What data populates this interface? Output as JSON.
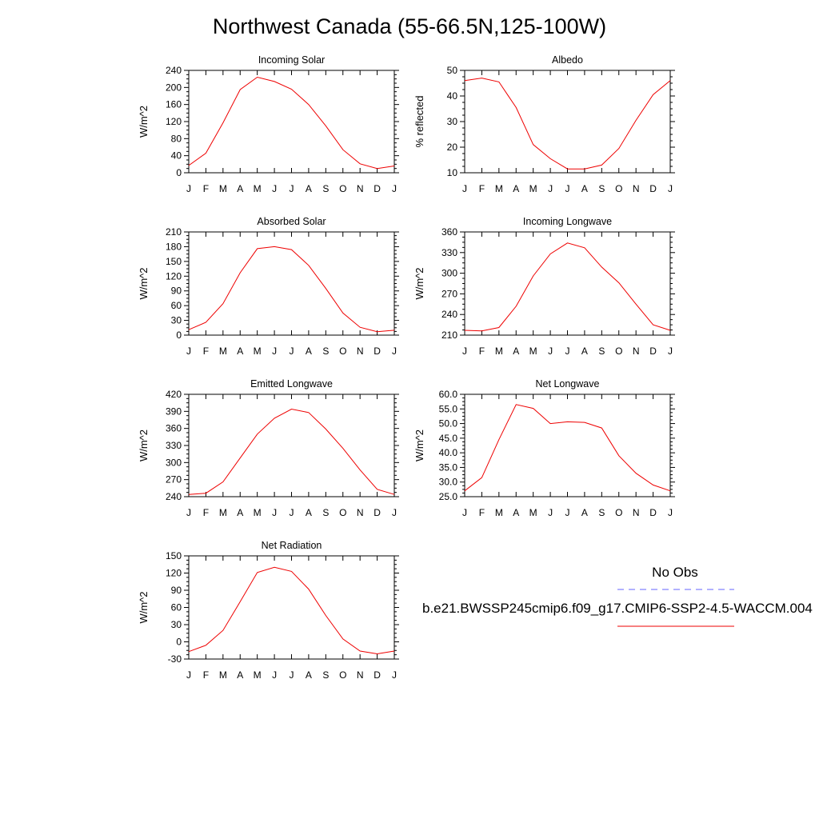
{
  "page_title": "Northwest Canada (55-66.5N,125-100W)",
  "legend": {
    "obs_label": "No Obs",
    "obs_color": "#6666ff",
    "model_label": "b.e21.BWSSP245cmip6.f09_g17.CMIP6-SSP2-4.5-WACCM.004",
    "model_color": "#ee0000"
  },
  "chart_data": [
    {
      "type": "line",
      "title": "Incoming Solar",
      "ylabel": "W/m^2",
      "categories": [
        "J",
        "F",
        "M",
        "A",
        "M",
        "J",
        "J",
        "A",
        "S",
        "O",
        "N",
        "D",
        "J"
      ],
      "ylim": [
        0,
        240
      ],
      "yticks": [
        "0",
        "40",
        "80",
        "120",
        "160",
        "200",
        "240"
      ],
      "series": [
        {
          "values": [
            17,
            46,
            117,
            195,
            224,
            214,
            196,
            160,
            110,
            54,
            21,
            10,
            16
          ]
        }
      ]
    },
    {
      "type": "line",
      "title": "Albedo",
      "ylabel": "% reflected",
      "categories": [
        "J",
        "F",
        "M",
        "A",
        "M",
        "J",
        "J",
        "A",
        "S",
        "O",
        "N",
        "D",
        "J"
      ],
      "ylim": [
        10,
        50
      ],
      "yticks": [
        "10",
        "20",
        "30",
        "40",
        "50"
      ],
      "series": [
        {
          "values": [
            46,
            47,
            45.5,
            35.5,
            21,
            15.5,
            11.5,
            11.5,
            13,
            19.5,
            30.5,
            40.5,
            46
          ]
        }
      ]
    },
    {
      "type": "line",
      "title": "Absorbed Solar",
      "ylabel": "W/m^2",
      "categories": [
        "J",
        "F",
        "M",
        "A",
        "M",
        "J",
        "J",
        "A",
        "S",
        "O",
        "N",
        "D",
        "J"
      ],
      "ylim": [
        0,
        210
      ],
      "yticks": [
        "0",
        "30",
        "60",
        "90",
        "120",
        "150",
        "180",
        "210"
      ],
      "series": [
        {
          "values": [
            11,
            26,
            64,
            127,
            176,
            180,
            174,
            142,
            95,
            45,
            16,
            7,
            10
          ]
        }
      ]
    },
    {
      "type": "line",
      "title": "Incoming Longwave",
      "ylabel": "W/m^2",
      "categories": [
        "J",
        "F",
        "M",
        "A",
        "M",
        "J",
        "J",
        "A",
        "S",
        "O",
        "N",
        "D",
        "J"
      ],
      "ylim": [
        210,
        360
      ],
      "yticks": [
        "210",
        "240",
        "270",
        "300",
        "330",
        "360"
      ],
      "series": [
        {
          "values": [
            217,
            216,
            221,
            252,
            296,
            328,
            344,
            337,
            309,
            286,
            255,
            225,
            217
          ]
        }
      ]
    },
    {
      "type": "line",
      "title": "Emitted Longwave",
      "ylabel": "W/m^2",
      "categories": [
        "J",
        "F",
        "M",
        "A",
        "M",
        "J",
        "J",
        "A",
        "S",
        "O",
        "N",
        "D",
        "J"
      ],
      "ylim": [
        240,
        420
      ],
      "yticks": [
        "240",
        "270",
        "300",
        "330",
        "360",
        "390",
        "420"
      ],
      "series": [
        {
          "values": [
            244,
            246,
            266,
            308,
            350,
            378,
            394,
            388,
            359,
            325,
            287,
            253,
            244
          ]
        }
      ]
    },
    {
      "type": "line",
      "title": "Net Longwave",
      "ylabel": "W/m^2",
      "categories": [
        "J",
        "F",
        "M",
        "A",
        "M",
        "J",
        "J",
        "A",
        "S",
        "O",
        "N",
        "D",
        "J"
      ],
      "ylim": [
        25,
        60
      ],
      "yticks": [
        "25.0",
        "30.0",
        "35.0",
        "40.0",
        "45.0",
        "50.0",
        "55.0",
        "60.0"
      ],
      "series": [
        {
          "values": [
            27,
            31.5,
            44.5,
            56.5,
            55.2,
            50,
            50.6,
            50.4,
            48.5,
            39,
            33,
            29,
            27
          ]
        }
      ]
    },
    {
      "type": "line",
      "title": "Net Radiation",
      "ylabel": "W/m^2",
      "categories": [
        "J",
        "F",
        "M",
        "A",
        "M",
        "J",
        "J",
        "A",
        "S",
        "O",
        "N",
        "D",
        "J"
      ],
      "ylim": [
        -30,
        150
      ],
      "yticks": [
        "-30",
        "0",
        "30",
        "60",
        "90",
        "120",
        "150"
      ],
      "series": [
        {
          "values": [
            -17,
            -6,
            20,
            70,
            121,
            130,
            123,
            92,
            46,
            5,
            -16,
            -21,
            -16
          ]
        }
      ]
    }
  ]
}
